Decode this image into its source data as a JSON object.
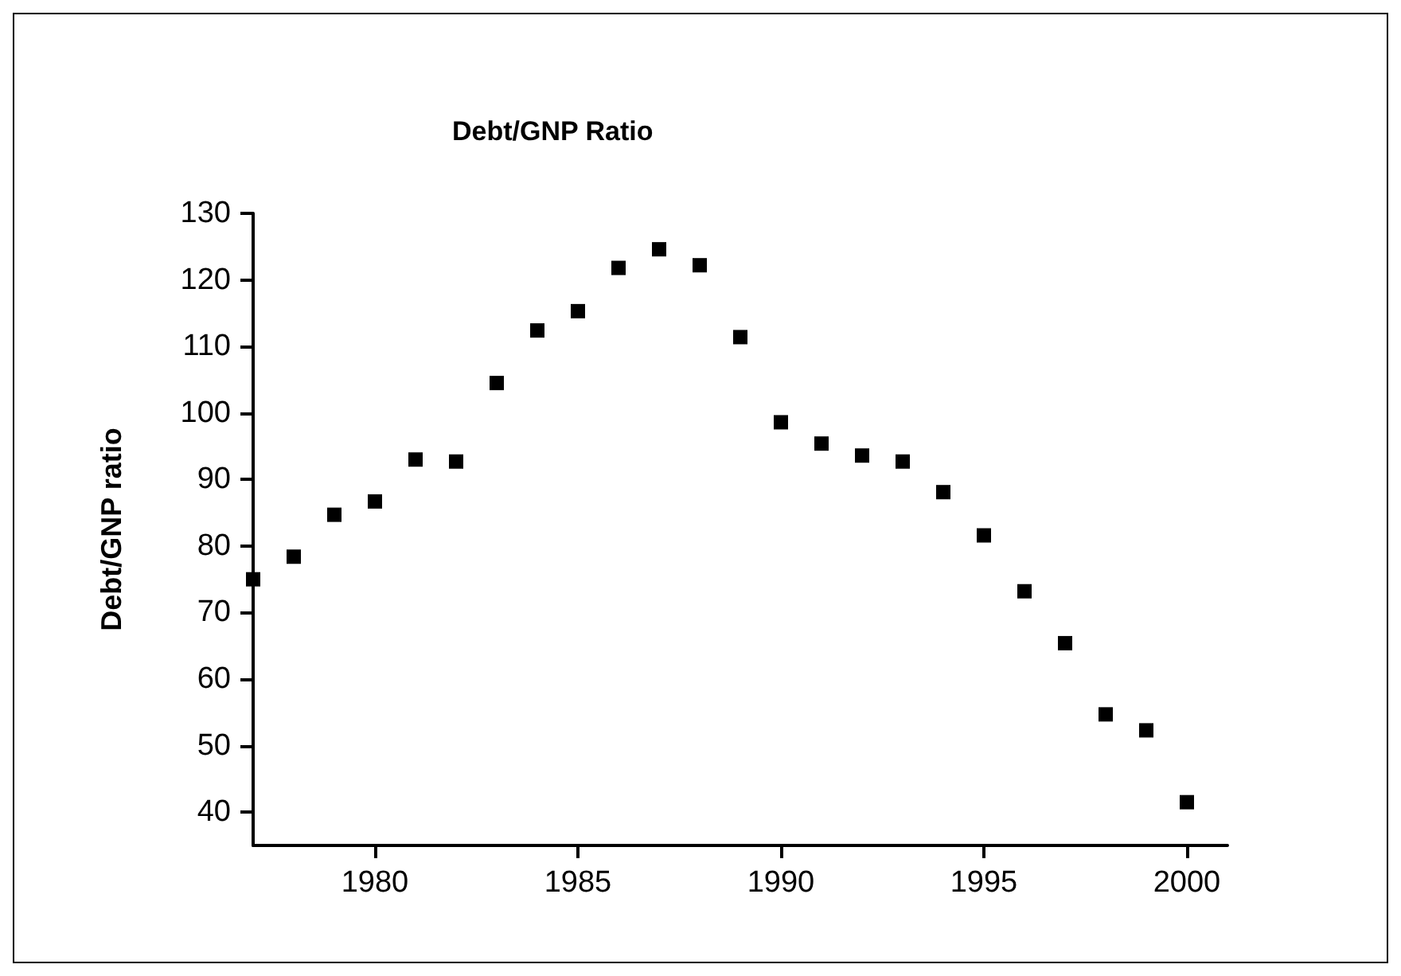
{
  "chart_data": {
    "type": "scatter",
    "title": "Debt/GNP Ratio",
    "ylabel": "Debt/GNP ratio",
    "x": [
      1977,
      1978,
      1979,
      1980,
      1981,
      1982,
      1983,
      1984,
      1985,
      1986,
      1987,
      1988,
      1989,
      1990,
      1991,
      1992,
      1993,
      1994,
      1995,
      1996,
      1997,
      1998,
      1999,
      2000
    ],
    "series": [
      {
        "color": "#000000",
        "values": [
          75,
          78.4,
          84.7,
          86.7,
          93,
          92.7,
          104.5,
          112.4,
          115.3,
          121.8,
          124.6,
          122.2,
          111.4,
          98.6,
          95.4,
          93.6,
          92.7,
          88.1,
          81.6,
          73.2,
          65.4,
          54.7,
          52.3,
          41.5
        ]
      }
    ],
    "xlim": [
      1977,
      2001
    ],
    "xticks": [
      1980,
      1985,
      1990,
      1995,
      2000
    ],
    "ylim": [
      35,
      130
    ],
    "yticks": [
      40,
      50,
      60,
      70,
      80,
      90,
      100,
      110,
      120,
      130
    ],
    "grid": false,
    "marker": "square"
  }
}
